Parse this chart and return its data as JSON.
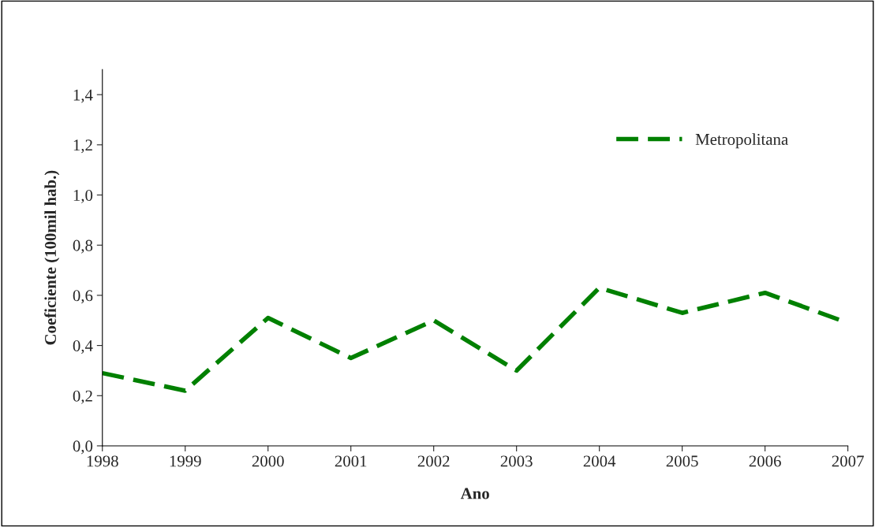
{
  "chart_data": {
    "type": "line",
    "xlabel": "Ano",
    "ylabel": "Coeficiente (100mil hab.)",
    "x": [
      1998,
      1999,
      2000,
      2001,
      2002,
      2003,
      2004,
      2005,
      2006,
      2007
    ],
    "series": [
      {
        "name": "Metropolitana",
        "color": "#008000",
        "values": [
          0.29,
          0.22,
          0.51,
          0.35,
          0.5,
          0.3,
          0.63,
          0.53,
          0.61,
          0.49
        ]
      }
    ],
    "xlim": [
      1998,
      2007
    ],
    "xticks": [
      1998,
      1999,
      2000,
      2001,
      2002,
      2003,
      2004,
      2005,
      2006,
      2007
    ],
    "ylim": [
      0,
      1.5
    ],
    "yticks": [
      {
        "value": 0,
        "label": "0,0"
      },
      {
        "value": 0.2,
        "label": "0,2"
      },
      {
        "value": 0.4,
        "label": "0,4"
      },
      {
        "value": 0.6,
        "label": "0,6"
      },
      {
        "value": 0.8,
        "label": "0,8"
      },
      {
        "value": 1.0,
        "label": "1,0"
      },
      {
        "value": 1.2,
        "label": "1,2"
      },
      {
        "value": 1.4,
        "label": "1,4"
      }
    ],
    "legend": "top right",
    "line_style": "dashed",
    "marker": "none",
    "grid": false
  }
}
